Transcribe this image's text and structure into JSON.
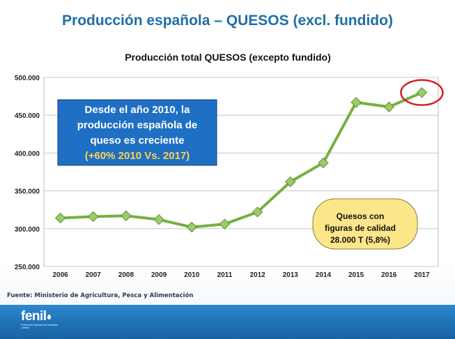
{
  "slide": {
    "title": "Producción española – QUESOS (excl. fundido)",
    "source": "Fuente: Ministerio de Agricultura, Pesca y Alimentación",
    "logo_text": "fenil",
    "logo_subtitle": "Federación Nacional de Industrias Lácteas"
  },
  "chart_data": {
    "type": "line",
    "title": "Producción total QUESOS (excepto fundido)",
    "xlabel": "",
    "ylabel": "",
    "x": [
      "2006",
      "2007",
      "2008",
      "2009",
      "2010",
      "2011",
      "2012",
      "2013",
      "2014",
      "2015",
      "2016",
      "2017"
    ],
    "series": [
      {
        "values": [
          314000,
          316000,
          317000,
          312000,
          302000,
          306000,
          322000,
          362000,
          387000,
          467000,
          461000,
          480000
        ]
      }
    ],
    "ylim": [
      250000,
      500000
    ],
    "yticks": [
      "250.000",
      "300.000",
      "350.000",
      "400.000",
      "450.000",
      "500.000"
    ],
    "ytick_values": [
      250000,
      300000,
      350000,
      400000,
      450000,
      500000
    ],
    "grid": true,
    "legend": "none",
    "colors": {
      "line": "#76b041",
      "marker_fill": "#9bcc6a",
      "marker_stroke": "#5e8f33",
      "highlight_ring": "#d61f26",
      "blue_box": "#1f6fc4",
      "yellow_text": "#ffd34a",
      "callout_fill": "#fde58a",
      "title_blue": "#1f6fa6"
    },
    "annotations": {
      "blue_box": {
        "lines": [
          "Desde el año 2010, la",
          "producción española de",
          "queso es creciente"
        ],
        "highlight": "(+60% 2010 Vs. 2017)"
      },
      "callout": {
        "lines": [
          "Quesos con",
          "figuras de calidad",
          "28.000 T (5,8%)"
        ]
      },
      "highlighted_point": "2017"
    }
  }
}
